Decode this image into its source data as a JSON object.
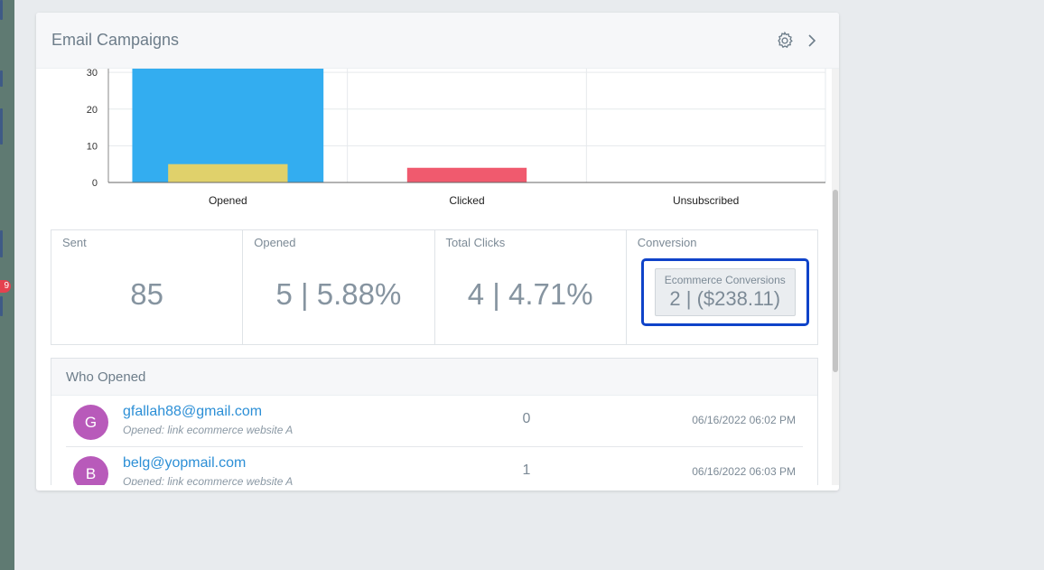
{
  "rail": {
    "badge_text": "9"
  },
  "panel": {
    "title": "Email Campaigns",
    "settings_icon": "gear-icon",
    "next_icon": "chevron-right-icon"
  },
  "chart_data": {
    "type": "bar",
    "categories": [
      "Opened",
      "Clicked",
      "Unsubscribed"
    ],
    "series": [
      {
        "values": [
          33,
          null,
          0
        ],
        "color": "#33adf0"
      },
      {
        "values": [
          5,
          4,
          0
        ],
        "colors": [
          "#e0d16b",
          "#f05a6e",
          "#f05a6e"
        ]
      }
    ],
    "yticks": [
      0,
      10,
      20,
      30
    ],
    "ylim": [
      0,
      33
    ],
    "grid": true
  },
  "stats": {
    "sent": {
      "label": "Sent",
      "value": "85"
    },
    "opened": {
      "label": "Opened",
      "value": "5 | 5.88%"
    },
    "clicks": {
      "label": "Total Clicks",
      "value": "4 | 4.71%"
    },
    "conversion": {
      "label": "Conversion",
      "box_label": "Ecommerce Conversions",
      "box_value": "2 | ($238.11)"
    }
  },
  "who_opened": {
    "title": "Who Opened",
    "rows": [
      {
        "initial": "G",
        "email": "gfallah88@gmail.com",
        "detail": "Opened: link ecommerce website A",
        "count": "0",
        "date": "06/16/2022 06:02 PM"
      },
      {
        "initial": "B",
        "email": "belg@yopmail.com",
        "detail": "Opened: link ecommerce website A",
        "count": "1",
        "date": "06/16/2022 06:03 PM"
      }
    ]
  },
  "colors": {
    "accent_link": "#2c8fd6",
    "highlight_border": "#0f43c9",
    "avatar": "#b85aba"
  }
}
